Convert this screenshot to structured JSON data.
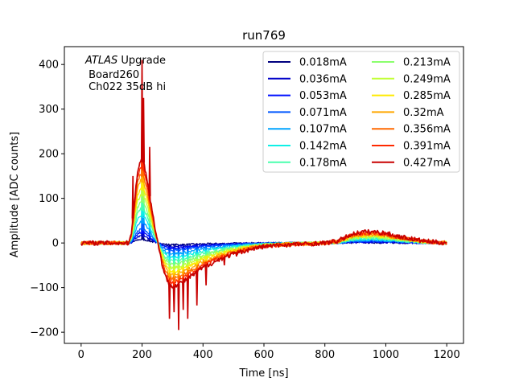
{
  "chart_data": {
    "type": "line",
    "title": "run769",
    "xlabel": "Time [ns]",
    "ylabel": "Amplitude [ADC counts]",
    "xlim": [
      -55,
      1255
    ],
    "ylim": [
      -225,
      440
    ],
    "xticks": [
      0,
      200,
      400,
      600,
      800,
      1000,
      1200
    ],
    "yticks": [
      -200,
      -100,
      0,
      100,
      200,
      300,
      400
    ],
    "grid": false,
    "legend": {
      "placement": "top-right",
      "columns": 2
    },
    "annotation": {
      "italic_prefix": "ATLAS",
      "line1_rest": " Upgrade",
      "line2": " Board260",
      "line3": " Ch022 35dB hi"
    },
    "series": [
      {
        "name": "0.018mA",
        "color": "#00007f",
        "current": 0.018
      },
      {
        "name": "0.036mA",
        "color": "#0000c8",
        "current": 0.036
      },
      {
        "name": "0.053mA",
        "color": "#0010ff",
        "current": 0.053
      },
      {
        "name": "0.071mA",
        "color": "#0058ff",
        "current": 0.071
      },
      {
        "name": "0.107mA",
        "color": "#00a4ff",
        "current": 0.107
      },
      {
        "name": "0.142mA",
        "color": "#0ff0e6",
        "current": 0.142
      },
      {
        "name": "0.178mA",
        "color": "#49ffad",
        "current": 0.178
      },
      {
        "name": "0.213mA",
        "color": "#8aff6d",
        "current": 0.213
      },
      {
        "name": "0.249mA",
        "color": "#c1ff36",
        "current": 0.249
      },
      {
        "name": "0.285mA",
        "color": "#ffea00",
        "current": 0.285
      },
      {
        "name": "0.32mA",
        "color": "#ffa700",
        "current": 0.32
      },
      {
        "name": "0.356mA",
        "color": "#ff6800",
        "current": 0.356
      },
      {
        "name": "0.391mA",
        "color": "#ff2900",
        "current": 0.391
      },
      {
        "name": "0.427mA",
        "color": "#c80000",
        "current": 0.427
      }
    ],
    "pulse_shape_at_max_current": {
      "x": [
        0,
        155,
        165,
        175,
        185,
        195,
        205,
        215,
        225,
        235,
        245,
        255,
        265,
        275,
        285,
        295,
        305,
        320,
        340,
        360,
        380,
        400,
        430,
        460,
        500,
        550,
        600,
        650,
        700,
        750,
        800,
        840,
        860,
        880,
        900,
        930,
        960,
        1000,
        1040,
        1080,
        1120,
        1160,
        1200
      ],
      "y": [
        0,
        0,
        20,
        90,
        160,
        185,
        180,
        150,
        105,
        65,
        25,
        -10,
        -45,
        -72,
        -88,
        -95,
        -96,
        -92,
        -84,
        -75,
        -65,
        -55,
        -45,
        -35,
        -25,
        -15,
        -8,
        -5,
        -3,
        -2,
        0,
        4,
        10,
        17,
        22,
        25,
        25,
        22,
        15,
        10,
        5,
        2,
        0
      ]
    },
    "spikes_at_max_current": [
      {
        "x": 170,
        "y": 150
      },
      {
        "x": 200,
        "y": 410
      },
      {
        "x": 205,
        "y": 325
      },
      {
        "x": 225,
        "y": 215
      },
      {
        "x": 290,
        "y": -170
      },
      {
        "x": 305,
        "y": -155
      },
      {
        "x": 320,
        "y": -195
      },
      {
        "x": 335,
        "y": -150
      },
      {
        "x": 350,
        "y": -170
      },
      {
        "x": 380,
        "y": -140
      },
      {
        "x": 410,
        "y": -95
      },
      {
        "x": 470,
        "y": -50
      },
      {
        "x": 510,
        "y": -30
      }
    ]
  }
}
